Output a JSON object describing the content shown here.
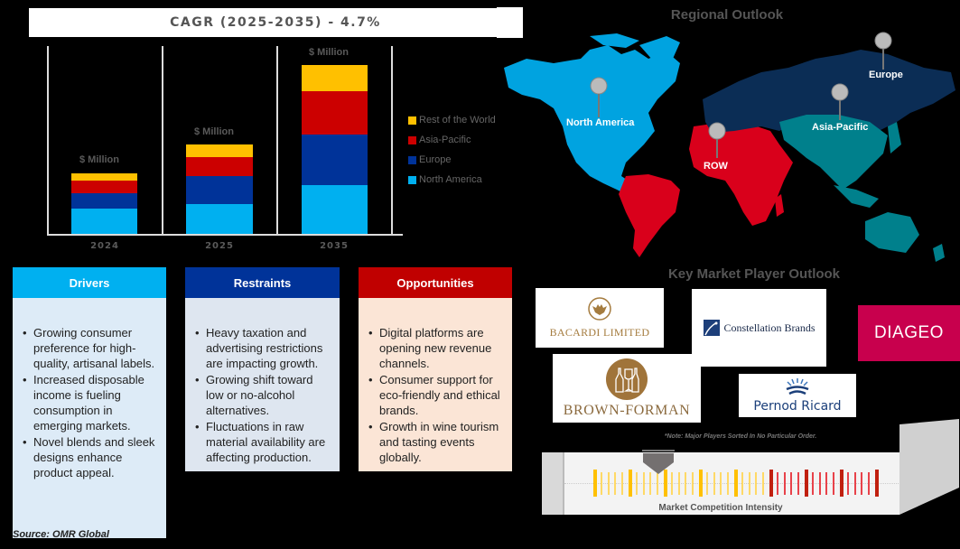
{
  "cagr": {
    "label": "CAGR (2025-2035) - 4.7%"
  },
  "chart_data": {
    "type": "bar",
    "stacked": true,
    "title": "CAGR (2025-2035) - 4.7%",
    "categories": [
      "2024",
      "2025",
      "2035"
    ],
    "category_tick_labels_as_rendered": [
      "2024",
      "2025",
      "2035"
    ],
    "bar_value_labels": [
      "$ Million",
      "$ Million",
      "$ Million"
    ],
    "unit": "$ Million",
    "series": [
      {
        "name": "North America",
        "color": "#00B0F0",
        "values": [
          28,
          33,
          54
        ]
      },
      {
        "name": "Europe",
        "color": "#003399",
        "values": [
          17,
          31,
          56
        ]
      },
      {
        "name": "Asia-Pacific",
        "color": "#CC0000",
        "values": [
          14,
          21,
          48
        ]
      },
      {
        "name": "Rest of the World",
        "color": "#FFC000",
        "values": [
          8,
          14,
          29
        ]
      }
    ],
    "values_note": "Relative pixel heights; no numeric axis shown",
    "xlabel": "",
    "ylabel": "",
    "grid": false,
    "legend_position": "right",
    "legend": [
      "Rest of the World",
      "Asia-Pacific",
      "Europe",
      "North America"
    ]
  },
  "legend": [
    {
      "label": "Rest of the World",
      "color": "#FFC000"
    },
    {
      "label": "Asia-Pacific",
      "color": "#CC0000"
    },
    {
      "label": "Europe",
      "color": "#003399"
    },
    {
      "label": "North America",
      "color": "#00B0F0"
    }
  ],
  "bars": [
    {
      "year": "2024",
      "label": "$ Million"
    },
    {
      "year": "2025",
      "label": "$ Million"
    },
    {
      "year": "2035",
      "label": "$ Million"
    }
  ],
  "regional": {
    "title": "Regional Outlook",
    "regions": [
      {
        "label": "North America",
        "color": "#00A3E0"
      },
      {
        "label": "Europe",
        "color": "#0B2D55"
      },
      {
        "label": "Asia-Pacific",
        "color": "#00808C"
      },
      {
        "label": "ROW",
        "color": "#D9001B"
      }
    ]
  },
  "dro": {
    "drivers": {
      "title": "Drivers",
      "color": "#00B0F0",
      "bg": "#DDEBF7",
      "items": [
        "Growing consumer preference for high-quality, artisanal labels.",
        "Increased disposable income is fueling consumption in emerging markets.",
        "Novel blends and sleek designs enhance product appeal."
      ]
    },
    "restraints": {
      "title": "Restraints",
      "color": "#003399",
      "bg": "#DEE6F0",
      "items": [
        "Heavy taxation and advertising restrictions are impacting growth.",
        "Growing shift toward low or no-alcohol alternatives.",
        "Fluctuations in raw material availability are affecting production."
      ]
    },
    "opportunities": {
      "title": "Opportunities",
      "color": "#C00000",
      "bg": "#FBE5D6",
      "items": [
        "Digital platforms are opening new revenue channels.",
        "Consumer support for eco-friendly and ethical brands.",
        "Growth in wine tourism and tasting events globally."
      ]
    }
  },
  "source": "Source: OMR Global",
  "key_players": {
    "title": "Key Market Player Outlook",
    "logos": [
      {
        "name": "BACARDI LIMITED"
      },
      {
        "name": "Constellation Brands"
      },
      {
        "name": "DIAGEO"
      },
      {
        "name": "BROWN-FORMAN"
      },
      {
        "name": "Pernod Ricard"
      }
    ],
    "note": "*Note: Major Players Sorted In No Particular Order."
  },
  "competition": {
    "label": "Market Competition Intensity"
  }
}
